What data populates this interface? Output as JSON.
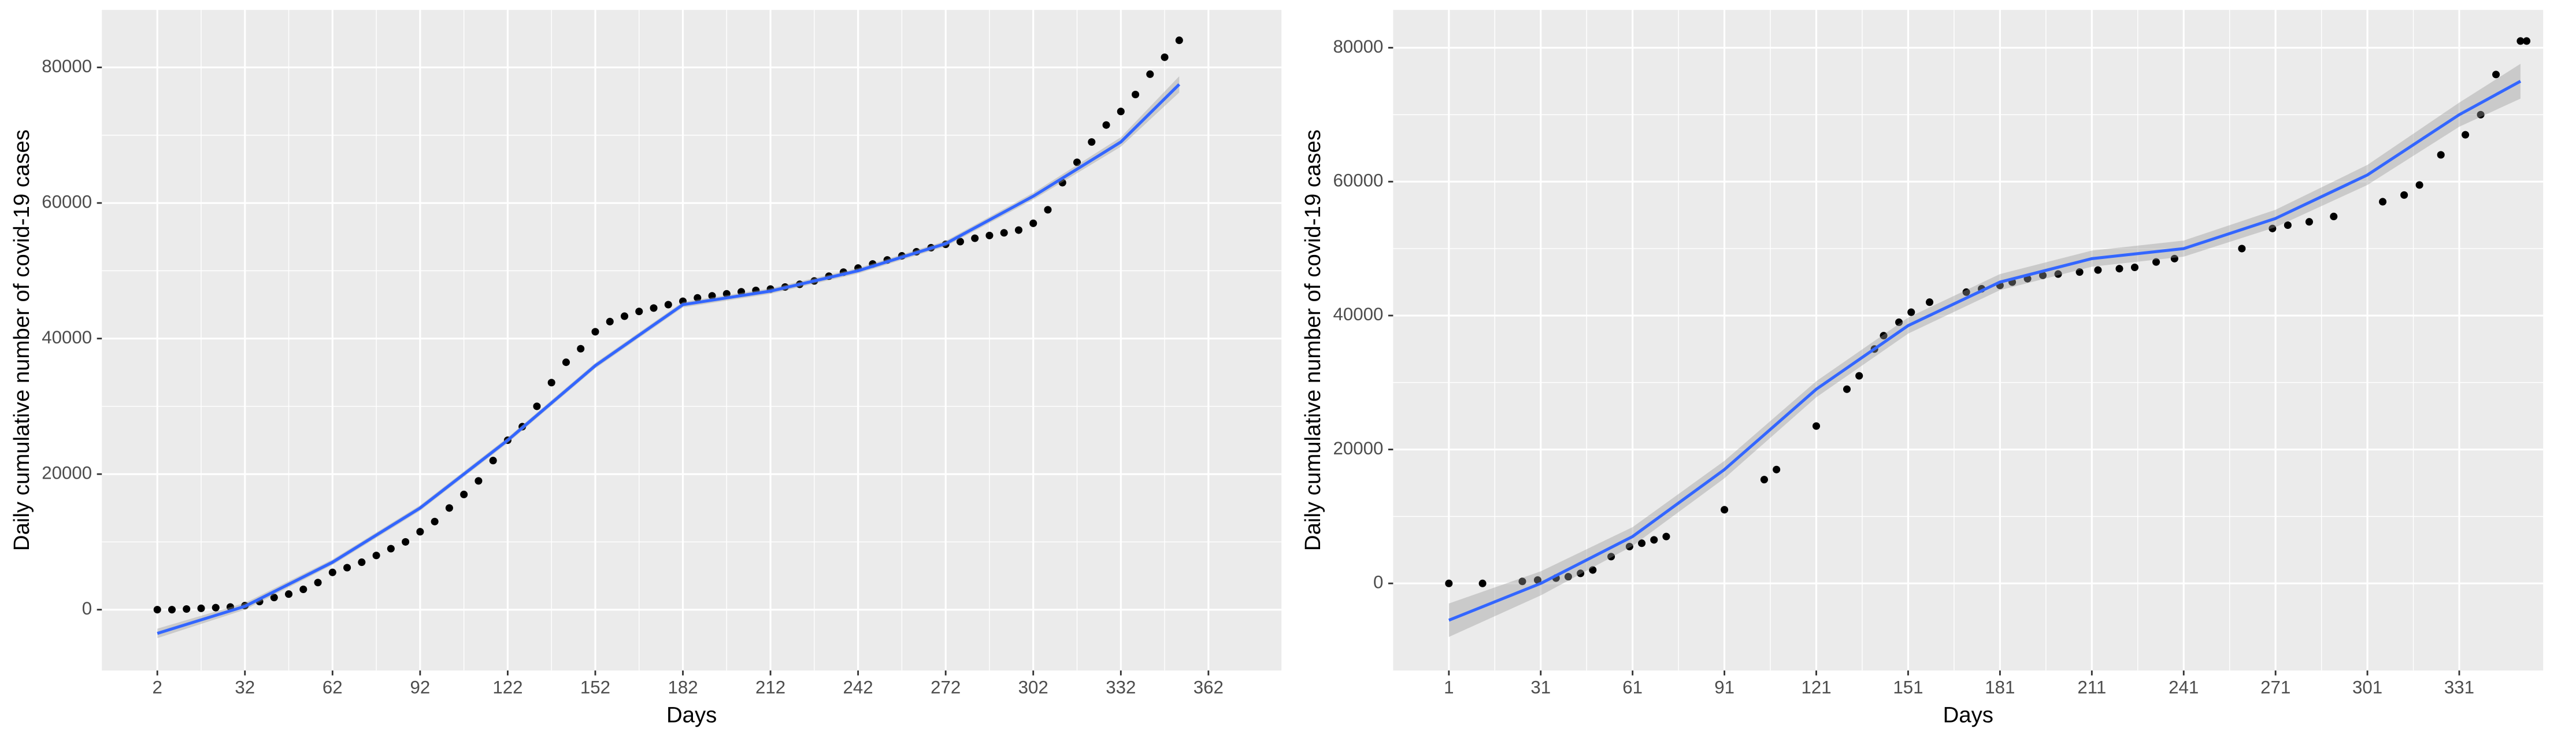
{
  "chart_data": [
    {
      "type": "scatter",
      "xlabel": "Days",
      "ylabel": "Daily cumulative number of covid-19 cases",
      "x": [
        2,
        7,
        12,
        17,
        22,
        27,
        32,
        37,
        42,
        47,
        52,
        57,
        62,
        67,
        72,
        77,
        82,
        87,
        92,
        97,
        102,
        107,
        112,
        117,
        122,
        127,
        132,
        137,
        142,
        147,
        152,
        157,
        162,
        167,
        172,
        177,
        182,
        187,
        192,
        197,
        202,
        207,
        212,
        217,
        222,
        227,
        232,
        237,
        242,
        247,
        252,
        257,
        262,
        267,
        272,
        277,
        282,
        287,
        292,
        297,
        302,
        307,
        312,
        317,
        322,
        327,
        332,
        337,
        342,
        347,
        352
      ],
      "values": [
        0,
        0,
        100,
        200,
        300,
        400,
        600,
        1200,
        1800,
        2300,
        3000,
        4000,
        5500,
        6200,
        7000,
        8000,
        9000,
        10000,
        11500,
        13000,
        15000,
        17000,
        19000,
        22000,
        25000,
        27000,
        30000,
        33500,
        36500,
        38500,
        41000,
        42500,
        43300,
        44000,
        44500,
        45000,
        45500,
        46000,
        46300,
        46600,
        46900,
        47100,
        47300,
        47600,
        48000,
        48500,
        49200,
        49800,
        50400,
        51000,
        51600,
        52200,
        52800,
        53400,
        53900,
        54300,
        54800,
        55200,
        55600,
        56000,
        57000,
        59000,
        63000,
        66000,
        69000,
        71500,
        73500,
        76000,
        79000,
        81500,
        84000
      ],
      "color": "#000000",
      "smooth": {
        "color": "#3366FF",
        "x": [
          2,
          32,
          62,
          92,
          122,
          152,
          182,
          212,
          242,
          272,
          302,
          332,
          352
        ],
        "values": [
          -3500,
          500,
          7000,
          15000,
          25000,
          36000,
          45000,
          47000,
          50000,
          54000,
          61000,
          69000,
          77500
        ],
        "lower": [
          -4200,
          0,
          6600,
          14600,
          24600,
          35600,
          44600,
          46600,
          49600,
          53600,
          60500,
          68300,
          76300
        ],
        "upper": [
          -2800,
          1000,
          7400,
          15400,
          25400,
          36400,
          45400,
          47400,
          50400,
          54400,
          61500,
          69700,
          78700
        ]
      },
      "xlim": [
        -17,
        387
      ],
      "ylim": [
        -8970,
        88480
      ],
      "xticks": [
        2,
        32,
        62,
        92,
        122,
        152,
        182,
        212,
        242,
        272,
        302,
        332,
        362
      ],
      "yticks": [
        0,
        20000,
        40000,
        60000,
        80000
      ],
      "grid": true
    },
    {
      "type": "scatter",
      "xlabel": "Days",
      "ylabel": "Daily cumulative number of covid-19 cases",
      "x": [
        1,
        12,
        25,
        30,
        36,
        40,
        44,
        48,
        54,
        60,
        64,
        68,
        72,
        91,
        104,
        108,
        121,
        131,
        135,
        140,
        143,
        148,
        152,
        158,
        170,
        175,
        181,
        185,
        190,
        195,
        200,
        207,
        213,
        220,
        225,
        232,
        238,
        260,
        270,
        275,
        282,
        290,
        306,
        313,
        318,
        325,
        333,
        338,
        343,
        351,
        353
      ],
      "values": [
        0,
        0,
        300,
        500,
        800,
        1000,
        1500,
        2000,
        4000,
        5500,
        6000,
        6500,
        7000,
        11000,
        15500,
        17000,
        23500,
        29000,
        31000,
        35000,
        37000,
        39000,
        40500,
        42000,
        43500,
        44000,
        44500,
        45000,
        45500,
        46000,
        46200,
        46500,
        46800,
        47000,
        47200,
        48000,
        48500,
        50000,
        53000,
        53500,
        54000,
        54800,
        57000,
        58000,
        59500,
        64000,
        67000,
        70000,
        76000,
        81000,
        81000
      ],
      "color": "#000000",
      "smooth": {
        "color": "#3366FF",
        "x": [
          1,
          31,
          61,
          91,
          121,
          151,
          181,
          211,
          241,
          271,
          301,
          331,
          351
        ],
        "values": [
          -5500,
          0,
          7000,
          17000,
          29000,
          38500,
          45000,
          48500,
          50000,
          54500,
          61000,
          70000,
          75000
        ],
        "lower": [
          -8000,
          -1800,
          5600,
          15700,
          27800,
          37300,
          43800,
          47300,
          48800,
          53200,
          59500,
          68200,
          72400
        ],
        "upper": [
          -3000,
          1800,
          8400,
          18300,
          30200,
          39700,
          46200,
          49700,
          51200,
          55800,
          62500,
          71800,
          77600
        ]
      },
      "xlim": [
        -17.2,
        358.4
      ],
      "ylim": [
        -13006,
        85644
      ],
      "xticks": [
        1,
        31,
        61,
        91,
        121,
        151,
        181,
        211,
        241,
        271,
        301,
        331
      ],
      "yticks": [
        0,
        20000,
        40000,
        60000,
        80000
      ],
      "grid": true
    }
  ]
}
